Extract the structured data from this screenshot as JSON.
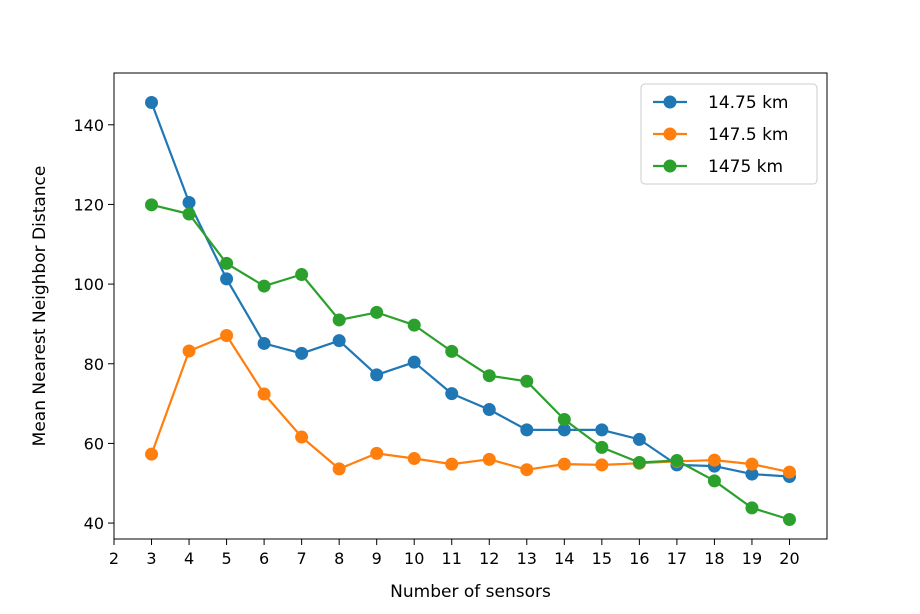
{
  "chart_data": {
    "type": "line",
    "title": "",
    "xlabel": "Number of sensors",
    "ylabel": "Mean Nearest Neighbor Distance",
    "xlim": [
      2,
      21
    ],
    "ylim": [
      36,
      153
    ],
    "xticks": [
      2,
      3,
      4,
      5,
      6,
      7,
      8,
      9,
      10,
      11,
      12,
      13,
      14,
      15,
      16,
      17,
      18,
      19,
      20
    ],
    "yticks": [
      40,
      60,
      80,
      100,
      120,
      140
    ],
    "grid": false,
    "legend_position": "top-right",
    "x": [
      3,
      4,
      5,
      6,
      7,
      8,
      9,
      10,
      11,
      12,
      13,
      14,
      15,
      16,
      17,
      18,
      19,
      20
    ],
    "series": [
      {
        "name": "14.75 km",
        "color": "#1f77b4",
        "values": [
          145.6,
          120.5,
          101.3,
          85.1,
          82.6,
          85.8,
          77.2,
          80.4,
          72.5,
          68.5,
          63.4,
          63.4,
          63.4,
          61.0,
          54.6,
          54.3,
          52.3,
          51.7
        ]
      },
      {
        "name": "147.5 km",
        "color": "#ff7f0e",
        "values": [
          57.3,
          83.2,
          87.1,
          72.4,
          61.6,
          53.6,
          57.5,
          56.2,
          54.8,
          56.0,
          53.4,
          54.8,
          54.6,
          55.0,
          55.5,
          55.8,
          54.8,
          52.8
        ]
      },
      {
        "name": "1475 km",
        "color": "#2ca02c",
        "values": [
          119.9,
          117.6,
          105.2,
          99.5,
          102.4,
          91.0,
          92.9,
          89.7,
          83.1,
          77.0,
          75.6,
          66.0,
          59.0,
          55.2,
          55.7,
          50.6,
          43.8,
          40.9
        ]
      }
    ]
  }
}
